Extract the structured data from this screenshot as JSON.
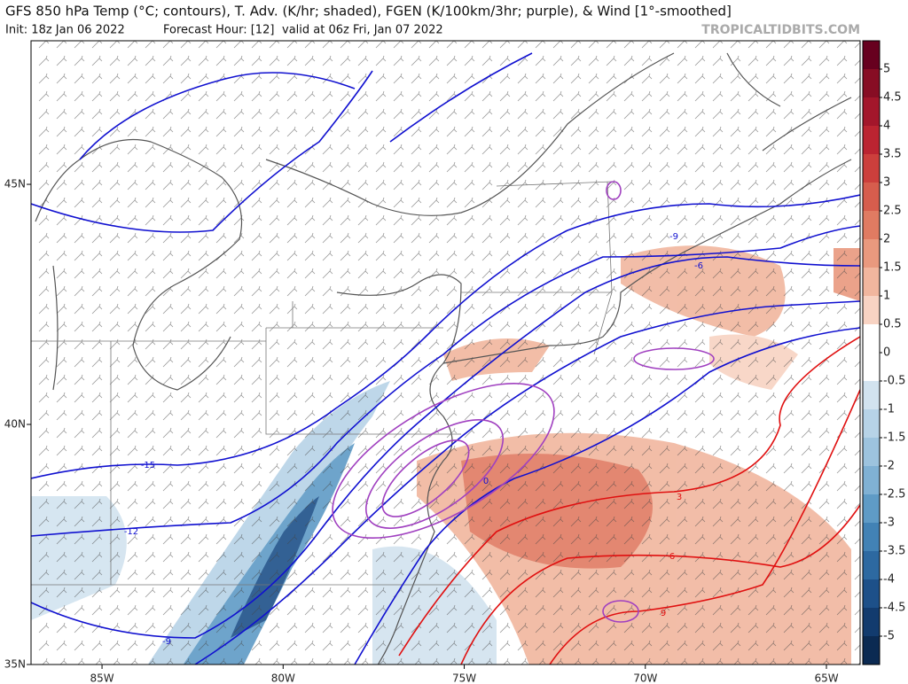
{
  "header": {
    "title": "GFS 850 hPa Temp (°C; contours), T. Adv. (K/hr; shaded), FGEN (K/100km/3hr; purple), & Wind [1°-smoothed]",
    "init": "Init: 18z Jan 06 2022",
    "forecast_hour": "Forecast Hour: [12]",
    "valid": "valid at 06z Fri, Jan 07 2022",
    "watermark": "TROPICALTIDBITS.COM"
  },
  "map": {
    "xlim": [
      -86.96,
      -64.07
    ],
    "ylim": [
      35,
      47.99
    ],
    "xticks": [
      {
        "value": -85,
        "label": "85W"
      },
      {
        "value": -80,
        "label": "80W"
      },
      {
        "value": -75,
        "label": "75W"
      },
      {
        "value": -70,
        "label": "70W"
      },
      {
        "value": -65,
        "label": "65W"
      }
    ],
    "yticks": [
      {
        "value": 45,
        "label": "45N"
      },
      {
        "value": 40,
        "label": "40N"
      },
      {
        "value": 35,
        "label": "35N"
      }
    ],
    "temp_contour_labels": [
      -15,
      -12,
      -9,
      -9,
      -6,
      0,
      3,
      6,
      9
    ]
  },
  "colorbar": {
    "lim": [
      -5.5,
      5.5
    ],
    "ticks": [
      5,
      4.5,
      4,
      3.5,
      3,
      2.5,
      2,
      1.5,
      1,
      0.5,
      0,
      -0.5,
      -1,
      -1.5,
      -2,
      -2.5,
      -3,
      -3.5,
      -4,
      -4.5,
      -5
    ],
    "colors": [
      "#67001f",
      "#870d24",
      "#a3162b",
      "#bb2431",
      "#cc3f3c",
      "#d65d4d",
      "#e07b62",
      "#e9997e",
      "#f1b69e",
      "#f8d3c3",
      "#ffffff",
      "#ffffff",
      "#d2e3ef",
      "#b7d3e7",
      "#9dc3de",
      "#80b1d4",
      "#5f9bc6",
      "#4282b5",
      "#2d69a1",
      "#1d5089",
      "#123b6e",
      "#0b2a52"
    ]
  }
}
